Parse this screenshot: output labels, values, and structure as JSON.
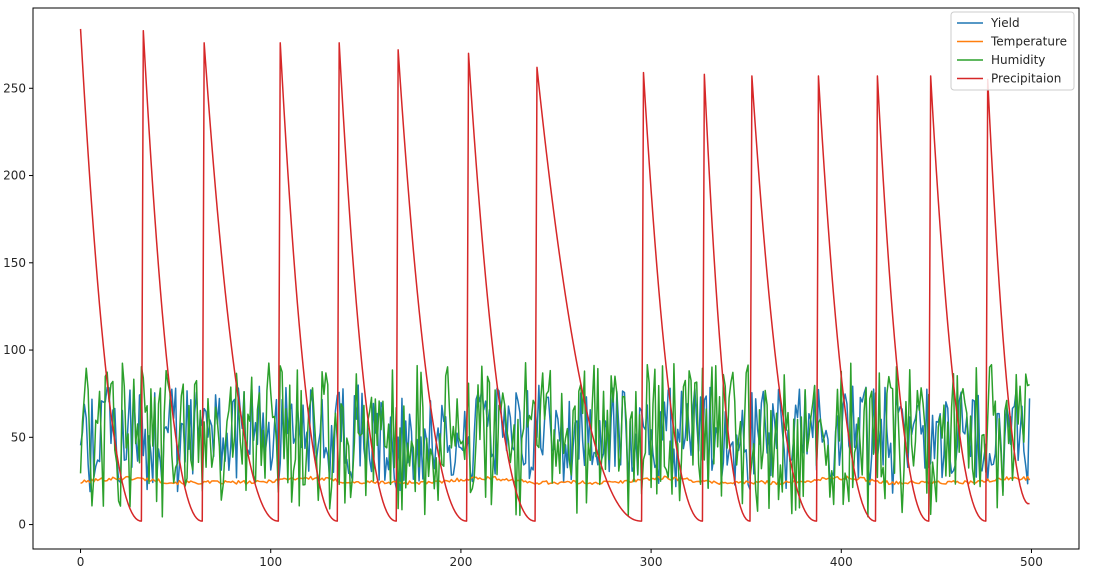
{
  "chart_data": {
    "type": "line",
    "title": "",
    "xlabel": "",
    "ylabel": "",
    "xlim": [
      -25,
      525
    ],
    "ylim": [
      -14,
      296
    ],
    "xticks": [
      0,
      100,
      200,
      300,
      400,
      500
    ],
    "yticks": [
      0,
      50,
      100,
      150,
      200,
      250
    ],
    "grid": false,
    "legend_position": "top-right",
    "n_points": 500,
    "series": [
      {
        "name": "Yield",
        "color": "#1f77b4",
        "min": 18,
        "max": 80,
        "mean": 44
      },
      {
        "name": "Temperature",
        "color": "#ff7f0e",
        "min": 22,
        "max": 31,
        "mean": 25
      },
      {
        "name": "Humidity",
        "color": "#2ca02c",
        "min": 4,
        "max": 93,
        "mean": 52
      },
      {
        "name": "Precipitaion",
        "color": "#d62728",
        "peaks": [
          {
            "x": 0,
            "y": 282
          },
          {
            "x": 33,
            "y": 281
          },
          {
            "x": 65,
            "y": 274
          },
          {
            "x": 105,
            "y": 274
          },
          {
            "x": 136,
            "y": 274
          },
          {
            "x": 167,
            "y": 270
          },
          {
            "x": 204,
            "y": 268
          },
          {
            "x": 240,
            "y": 260
          },
          {
            "x": 296,
            "y": 257
          },
          {
            "x": 328,
            "y": 256
          },
          {
            "x": 353,
            "y": 255
          },
          {
            "x": 388,
            "y": 255
          },
          {
            "x": 419,
            "y": 255
          },
          {
            "x": 447,
            "y": 255
          },
          {
            "x": 477,
            "y": 255
          }
        ],
        "end_value": 12
      }
    ]
  }
}
